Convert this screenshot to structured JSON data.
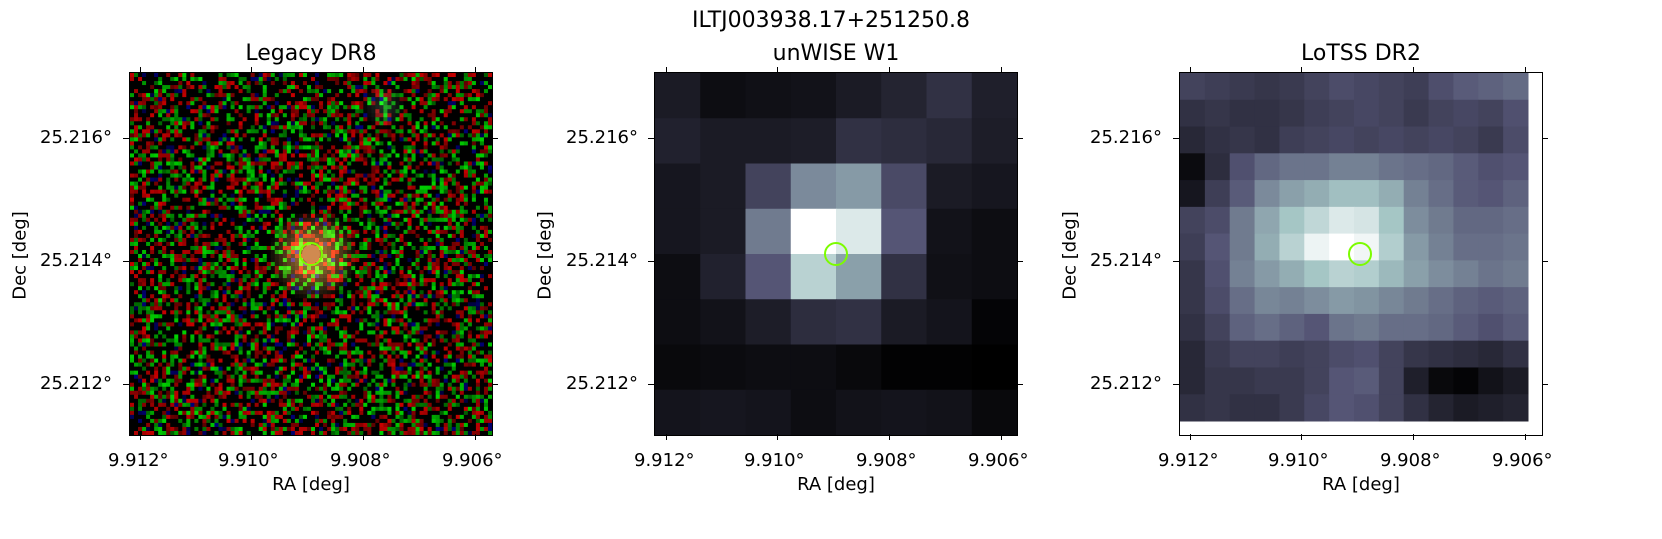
{
  "figure_title": "ILTJ003938.17+251250.8",
  "panels": [
    {
      "title": "Legacy DR8",
      "xlabel": "RA [deg]",
      "ylabel": "Dec [deg]",
      "xticks": [
        "9.912°",
        "9.910°",
        "9.908°",
        "9.906°"
      ],
      "yticks": [
        "25.216°",
        "25.214°",
        "25.212°"
      ],
      "image_kind": "rgb-noise",
      "source_color": "#d08a50"
    },
    {
      "title": "unWISE W1",
      "xlabel": "RA [deg]",
      "ylabel": "Dec [deg]",
      "xticks": [
        "9.912°",
        "9.910°",
        "9.908°",
        "9.906°"
      ],
      "yticks": [
        "25.216°",
        "25.214°",
        "25.212°"
      ],
      "image_kind": "grayscale-pixel",
      "pixels": [
        [
          0.12,
          0.06,
          0.07,
          0.08,
          0.12,
          0.16,
          0.22,
          0.14
        ],
        [
          0.15,
          0.12,
          0.12,
          0.13,
          0.22,
          0.2,
          0.18,
          0.13
        ],
        [
          0.1,
          0.12,
          0.3,
          0.55,
          0.6,
          0.33,
          0.12,
          0.1
        ],
        [
          0.1,
          0.12,
          0.5,
          1.0,
          0.9,
          0.38,
          0.08,
          0.06
        ],
        [
          0.06,
          0.15,
          0.38,
          0.8,
          0.62,
          0.22,
          0.07,
          0.06
        ],
        [
          0.06,
          0.08,
          0.13,
          0.2,
          0.22,
          0.12,
          0.09,
          0.02
        ],
        [
          0.04,
          0.05,
          0.06,
          0.06,
          0.04,
          0.01,
          0.01,
          0.0
        ],
        [
          0.09,
          0.1,
          0.09,
          0.06,
          0.08,
          0.09,
          0.08,
          0.04
        ]
      ]
    },
    {
      "title": "LoTSS DR2",
      "xlabel": "RA [deg]",
      "ylabel": "Dec [deg]",
      "xticks": [
        "9.912°",
        "9.910°",
        "9.908°",
        "9.906°"
      ],
      "yticks": [
        "25.216°",
        "25.214°",
        "25.212°"
      ],
      "image_kind": "grayscale-pixel",
      "pixels": [
        [
          0.3,
          0.28,
          0.26,
          0.24,
          0.26,
          0.3,
          0.34,
          0.32,
          0.3,
          0.28,
          0.35,
          0.4,
          0.42,
          0.45
        ],
        [
          0.22,
          0.24,
          0.22,
          0.22,
          0.24,
          0.28,
          0.3,
          0.32,
          0.3,
          0.26,
          0.3,
          0.32,
          0.3,
          0.36
        ],
        [
          0.18,
          0.22,
          0.24,
          0.22,
          0.28,
          0.3,
          0.32,
          0.3,
          0.32,
          0.3,
          0.32,
          0.3,
          0.26,
          0.34
        ],
        [
          0.05,
          0.2,
          0.36,
          0.44,
          0.48,
          0.48,
          0.52,
          0.52,
          0.48,
          0.46,
          0.44,
          0.4,
          0.36,
          0.38
        ],
        [
          0.1,
          0.28,
          0.4,
          0.55,
          0.62,
          0.66,
          0.72,
          0.72,
          0.66,
          0.52,
          0.46,
          0.4,
          0.38,
          0.42
        ],
        [
          0.3,
          0.34,
          0.5,
          0.64,
          0.74,
          0.82,
          0.9,
          0.88,
          0.74,
          0.56,
          0.5,
          0.44,
          0.44,
          0.46
        ],
        [
          0.28,
          0.38,
          0.5,
          0.66,
          0.8,
          0.95,
          1.0,
          0.96,
          0.78,
          0.6,
          0.52,
          0.46,
          0.46,
          0.48
        ],
        [
          0.24,
          0.36,
          0.52,
          0.6,
          0.66,
          0.74,
          0.8,
          0.78,
          0.7,
          0.62,
          0.56,
          0.52,
          0.48,
          0.5
        ],
        [
          0.24,
          0.34,
          0.46,
          0.54,
          0.52,
          0.56,
          0.6,
          0.58,
          0.54,
          0.5,
          0.46,
          0.42,
          0.4,
          0.42
        ],
        [
          0.22,
          0.3,
          0.42,
          0.46,
          0.42,
          0.38,
          0.48,
          0.5,
          0.46,
          0.46,
          0.44,
          0.4,
          0.36,
          0.4
        ],
        [
          0.18,
          0.26,
          0.3,
          0.3,
          0.28,
          0.3,
          0.34,
          0.36,
          0.3,
          0.24,
          0.22,
          0.2,
          0.18,
          0.22
        ],
        [
          0.18,
          0.24,
          0.24,
          0.26,
          0.26,
          0.3,
          0.38,
          0.4,
          0.3,
          0.14,
          0.04,
          0.02,
          0.08,
          0.12
        ],
        [
          0.22,
          0.24,
          0.22,
          0.22,
          0.26,
          0.32,
          0.38,
          0.36,
          0.3,
          0.22,
          0.16,
          0.12,
          0.14,
          0.16
        ]
      ]
    }
  ]
}
